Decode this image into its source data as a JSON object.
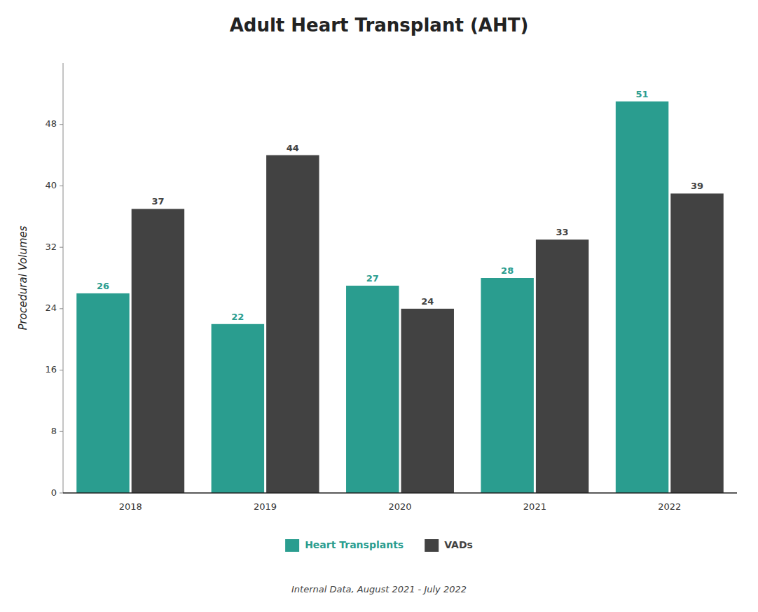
{
  "chart_data": {
    "type": "bar",
    "title": "Adult Heart Transplant (AHT)",
    "ylabel": "Procedural Volumes",
    "categories": [
      "2018",
      "2019",
      "2020",
      "2021",
      "2022"
    ],
    "series": [
      {
        "name": "Heart Transplants",
        "color": "#2a9d8f",
        "values": [
          26,
          22,
          27,
          28,
          51
        ]
      },
      {
        "name": "VADs",
        "color": "#424242",
        "values": [
          37,
          44,
          24,
          33,
          39
        ]
      }
    ],
    "ylim": [
      0,
      56
    ],
    "yticks": [
      0,
      8,
      16,
      24,
      32,
      40,
      48
    ],
    "grid": false,
    "legend": "bottom",
    "data_labels": true,
    "annotations": [
      "Internal Data, August 2021 - July 2022"
    ]
  }
}
